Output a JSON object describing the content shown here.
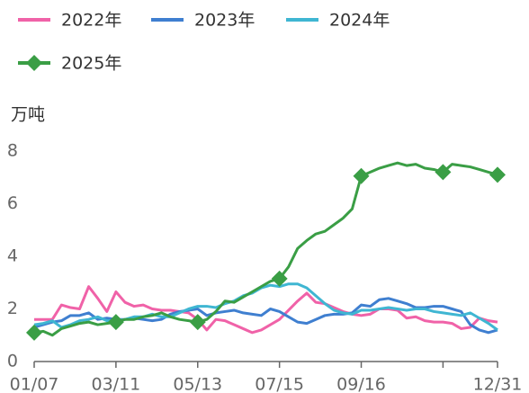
{
  "chart_data": {
    "type": "line",
    "y_label": "万吨",
    "categories": [
      "01/07",
      null,
      null,
      null,
      null,
      null,
      null,
      null,
      null,
      "03/11",
      null,
      null,
      null,
      null,
      null,
      null,
      null,
      null,
      "05/13",
      null,
      null,
      null,
      null,
      null,
      null,
      null,
      null,
      "07/15",
      null,
      null,
      null,
      null,
      null,
      null,
      null,
      null,
      "09/16",
      null,
      null,
      null,
      null,
      null,
      null,
      null,
      null,
      null,
      null,
      null,
      null,
      null,
      null,
      "12/31"
    ],
    "ylim": [
      0,
      8
    ],
    "yticks": [
      0,
      2,
      4,
      6,
      8
    ],
    "grid": false,
    "series": [
      {
        "name": "2022年",
        "color": "#f062a8",
        "values": [
          1.6,
          1.6,
          1.6,
          2.15,
          2.05,
          2.0,
          2.85,
          2.4,
          1.9,
          2.65,
          2.25,
          2.1,
          2.15,
          2.0,
          1.95,
          1.95,
          1.9,
          1.85,
          1.6,
          1.2,
          1.6,
          1.55,
          1.4,
          1.25,
          1.1,
          1.2,
          1.4,
          1.6,
          1.95,
          2.3,
          2.6,
          2.25,
          2.2,
          2.05,
          1.9,
          1.8,
          1.75,
          1.8,
          2.0,
          2.0,
          1.95,
          1.65,
          1.7,
          1.55,
          1.5,
          1.5,
          1.45,
          1.25,
          1.3,
          1.65,
          1.55,
          1.5
        ]
      },
      {
        "name": "2023年",
        "color": "#3f7fd0",
        "values": [
          1.3,
          1.4,
          1.5,
          1.55,
          1.75,
          1.75,
          1.85,
          1.6,
          1.65,
          1.6,
          1.6,
          1.65,
          1.6,
          1.55,
          1.6,
          1.8,
          1.9,
          1.95,
          2.0,
          1.75,
          1.85,
          1.9,
          1.95,
          1.85,
          1.8,
          1.75,
          2.0,
          1.9,
          1.7,
          1.5,
          1.45,
          1.6,
          1.75,
          1.8,
          1.8,
          1.85,
          2.15,
          2.1,
          2.35,
          2.4,
          2.3,
          2.2,
          2.05,
          2.05,
          2.1,
          2.1,
          2.0,
          1.9,
          1.4,
          1.2,
          1.1,
          1.2
        ]
      },
      {
        "name": "2024年",
        "color": "#3fb6d2",
        "values": [
          1.4,
          1.45,
          1.55,
          1.3,
          1.4,
          1.55,
          1.6,
          1.7,
          1.55,
          1.55,
          1.6,
          1.7,
          1.7,
          1.8,
          1.7,
          1.7,
          1.85,
          2.0,
          2.1,
          2.1,
          2.05,
          2.2,
          2.3,
          2.5,
          2.6,
          2.8,
          2.9,
          2.85,
          2.95,
          2.95,
          2.8,
          2.5,
          2.2,
          1.95,
          1.85,
          1.8,
          1.95,
          1.95,
          2.0,
          2.05,
          2.0,
          1.95,
          2.0,
          2.0,
          1.9,
          1.85,
          1.8,
          1.75,
          1.85,
          1.65,
          1.45,
          1.2
        ]
      },
      {
        "name": "2025年",
        "color": "#3a9e45",
        "marker": "diamond",
        "values": [
          1.1,
          1.15,
          1.0,
          1.25,
          1.35,
          1.45,
          1.5,
          1.4,
          1.45,
          1.5,
          1.6,
          1.6,
          1.7,
          1.75,
          1.85,
          1.7,
          1.6,
          1.55,
          1.5,
          1.6,
          1.9,
          2.3,
          2.25,
          2.45,
          2.65,
          2.85,
          3.05,
          3.15,
          3.6,
          4.3,
          4.6,
          4.85,
          4.95,
          5.2,
          5.45,
          5.8,
          7.05,
          7.2,
          7.35,
          7.45,
          7.55,
          7.45,
          7.5,
          7.35,
          7.3,
          7.2,
          7.5,
          7.45,
          7.4,
          7.3,
          7.2,
          7.1
        ]
      }
    ]
  }
}
